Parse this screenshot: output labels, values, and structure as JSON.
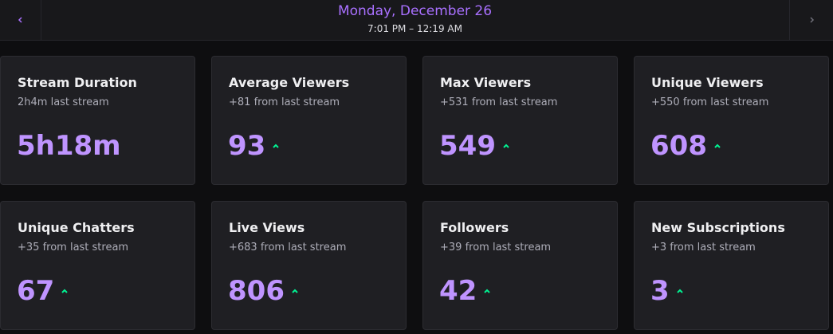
{
  "header": {
    "title": "Monday, December 26",
    "subtitle": "7:01 PM – 12:19 AM"
  },
  "cards": [
    {
      "title": "Stream Duration",
      "subtitle": "2h4m last stream",
      "value": "5h18m"
    },
    {
      "title": "Average Viewers",
      "subtitle": "+81 from last stream",
      "value": 93
    },
    {
      "title": "Max Viewers",
      "subtitle": "+531 from last stream",
      "value": 549
    },
    {
      "title": "Unique Viewers",
      "subtitle": "+550 from last stream",
      "value": 608
    },
    {
      "title": "Unique Chatters",
      "subtitle": "+35 from last stream",
      "value": 67
    },
    {
      "title": "Live Views",
      "subtitle": "+683 from last stream",
      "value": 806
    },
    {
      "title": "Followers",
      "subtitle": "+39 from last stream",
      "value": 42
    },
    {
      "title": "New Subscriptions",
      "subtitle": "+3 from last stream",
      "value": 3
    }
  ]
}
